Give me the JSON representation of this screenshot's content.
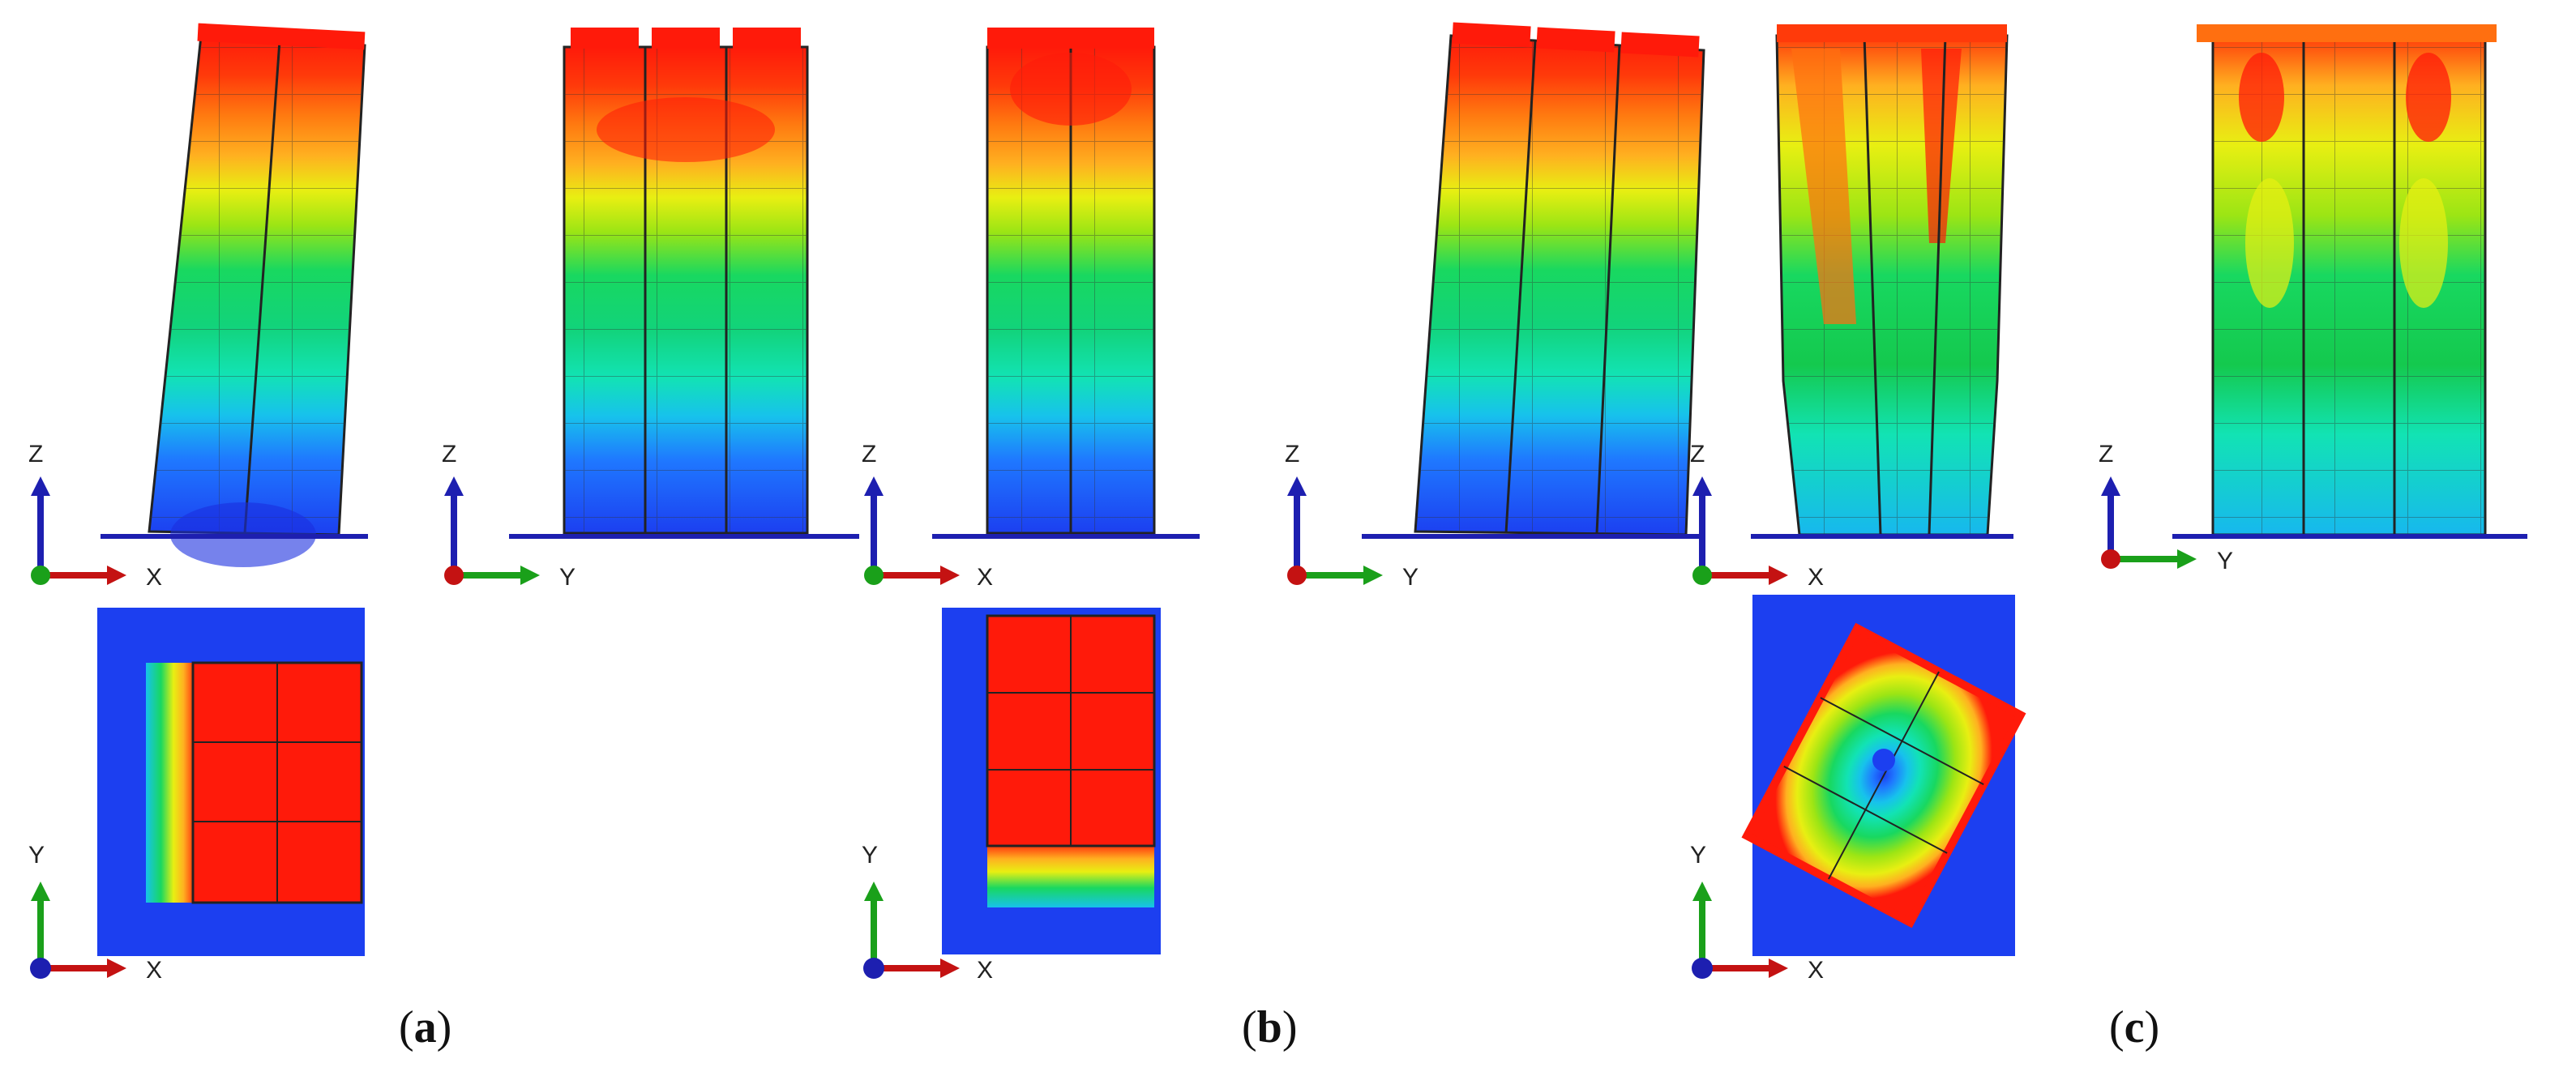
{
  "panels": [
    {
      "open": "(",
      "letter": "a",
      "close": ")"
    },
    {
      "open": "(",
      "letter": "b",
      "close": ")"
    },
    {
      "open": "(",
      "letter": "c",
      "close": ")"
    }
  ],
  "axes": {
    "x": "X",
    "y": "Y",
    "z": "Z"
  },
  "colors": {
    "contour_scale": [
      "#1c3ff0",
      "#1f78ff",
      "#17c2ec",
      "#12e3b4",
      "#18d860",
      "#14c51f",
      "#9ce514",
      "#e8ef12",
      "#ffb020",
      "#ff6f10",
      "#ff1a0a"
    ],
    "x_axis": "#c41212",
    "y_axis": "#1aa01a",
    "z_axis": "#1d1fb0",
    "base_line": "#1d1fb0",
    "plan_background": "#1c3ff0"
  }
}
